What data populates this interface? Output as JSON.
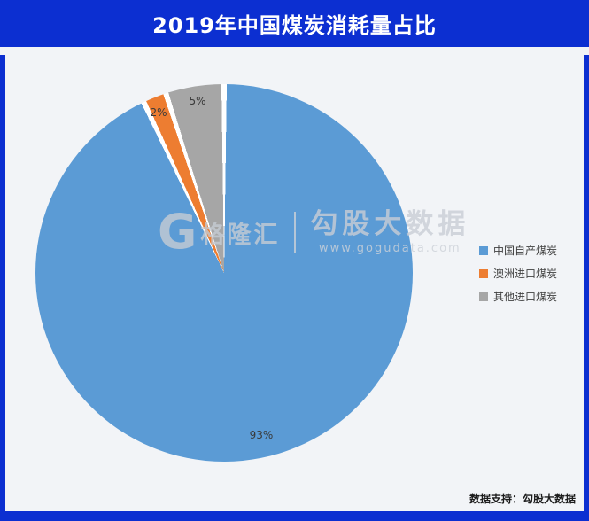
{
  "header": {
    "title": "2019年中国煤炭消耗量占比"
  },
  "chart_data": {
    "type": "pie",
    "title": "2019年中国煤炭消耗量占比",
    "categories": [
      "中国自产煤炭",
      "澳洲进口煤炭",
      "其他进口煤炭"
    ],
    "values": [
      93,
      2,
      5
    ],
    "labels": [
      "93%",
      "2%",
      "5%"
    ],
    "colors": [
      "#5b9bd5",
      "#ed7d31",
      "#a6a6a6"
    ],
    "legend_position": "right",
    "start_angle_deg": 0,
    "direction": "clockwise"
  },
  "watermark": {
    "logo_letter": "G",
    "logo_text": "格隆汇",
    "brand": "勾股大数据",
    "url": "www.gogudata.com"
  },
  "footer": {
    "credit": "数据支持：勾股大数据"
  },
  "colors": {
    "accent_blue": "#0c2fd1",
    "panel_background": "#f2f4f7",
    "slice_domestic": "#5b9bd5",
    "slice_australia": "#ed7d31",
    "slice_other": "#a6a6a6"
  }
}
